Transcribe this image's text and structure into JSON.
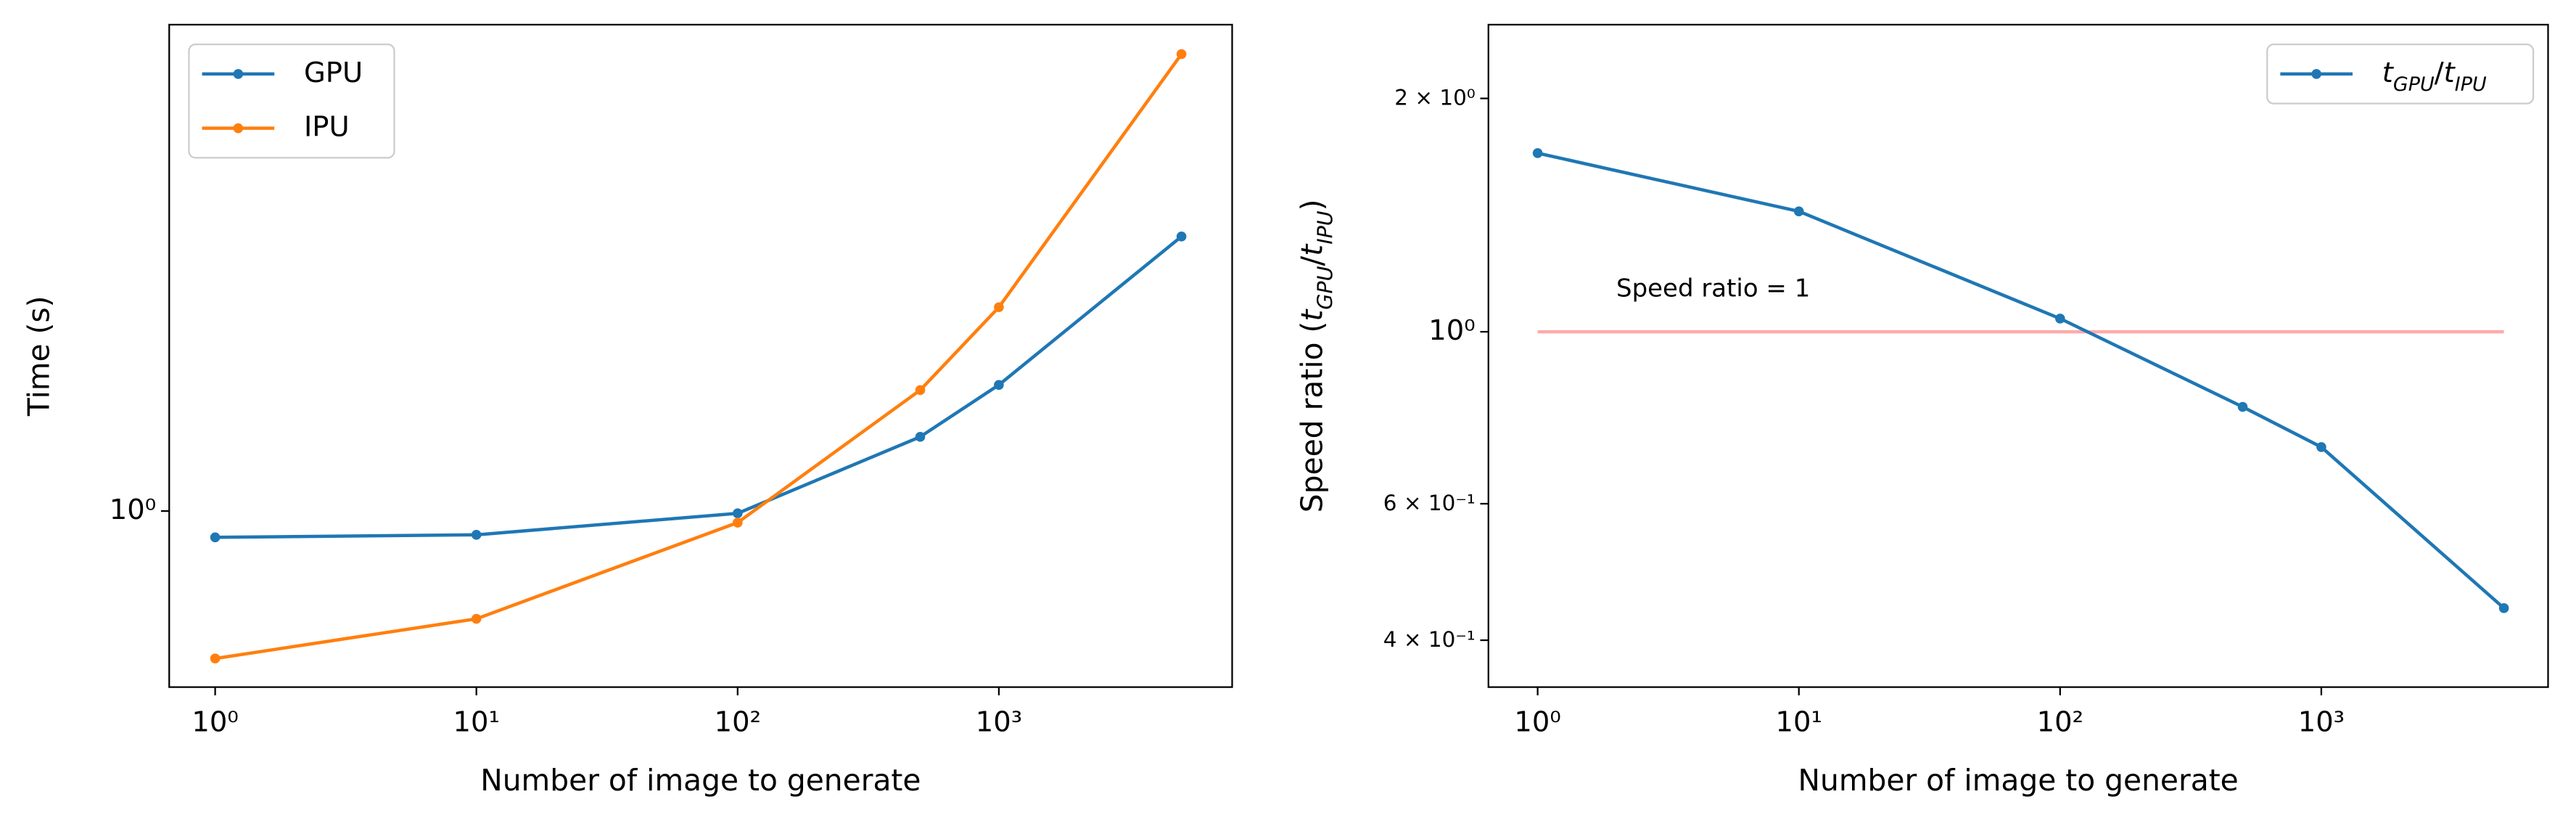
{
  "chart_data": [
    {
      "type": "line",
      "xlabel": "Number of image to generate",
      "ylabel": "Time (s)",
      "xscale": "log",
      "yscale": "log",
      "x": [
        1,
        10,
        100,
        500,
        1000,
        5000
      ],
      "series": [
        {
          "name": "GPU",
          "color": "#1f77b4",
          "values": [
            0.89,
            0.9,
            0.99,
            1.39,
            1.75,
            3.38
          ]
        },
        {
          "name": "IPU",
          "color": "#ff7f0e",
          "values": [
            0.52,
            0.62,
            0.95,
            1.71,
            2.47,
            7.59
          ]
        }
      ],
      "xlim": [
        0.667,
        7816
      ],
      "ylim": [
        0.458,
        8.65
      ],
      "xticks": [
        {
          "value": 1,
          "label": "10⁰"
        },
        {
          "value": 10,
          "label": "10¹"
        },
        {
          "value": 100,
          "label": "10²"
        },
        {
          "value": 1000,
          "label": "10³"
        }
      ],
      "yticks": [
        {
          "value": 1,
          "label": "10⁰"
        }
      ],
      "legend": "upper left"
    },
    {
      "type": "line",
      "xlabel": "Number of image to generate",
      "ylabel": "Speed ratio (tGPU/tIPU)",
      "xscale": "log",
      "yscale": "log",
      "x": [
        1,
        10,
        100,
        500,
        1000,
        5000
      ],
      "series": [
        {
          "name": "tGPU/tIPU",
          "color": "#1f77b4",
          "values": [
            1.7,
            1.43,
            1.04,
            0.8,
            0.71,
            0.44
          ]
        }
      ],
      "hline": {
        "y": 1,
        "xmin": 1,
        "xmax": 5000,
        "color": "#ffaaaa"
      },
      "annotation": {
        "text": "Speed ratio = 1",
        "x": 2,
        "y": 1.135
      },
      "xlim": [
        0.648,
        7380
      ],
      "ylim": [
        0.348,
        2.49
      ],
      "xticks": [
        {
          "value": 1,
          "label": "10⁰"
        },
        {
          "value": 10,
          "label": "10¹"
        },
        {
          "value": 100,
          "label": "10²"
        },
        {
          "value": 1000,
          "label": "10³"
        }
      ],
      "yticks": [
        {
          "value": 2,
          "label": "2 × 10⁰"
        },
        {
          "value": 1,
          "label": "10⁰"
        },
        {
          "value": 0.6,
          "label": "6 × 10⁻¹"
        },
        {
          "value": 0.4,
          "label": "4 × 10⁻¹"
        }
      ],
      "legend": "upper right"
    }
  ]
}
